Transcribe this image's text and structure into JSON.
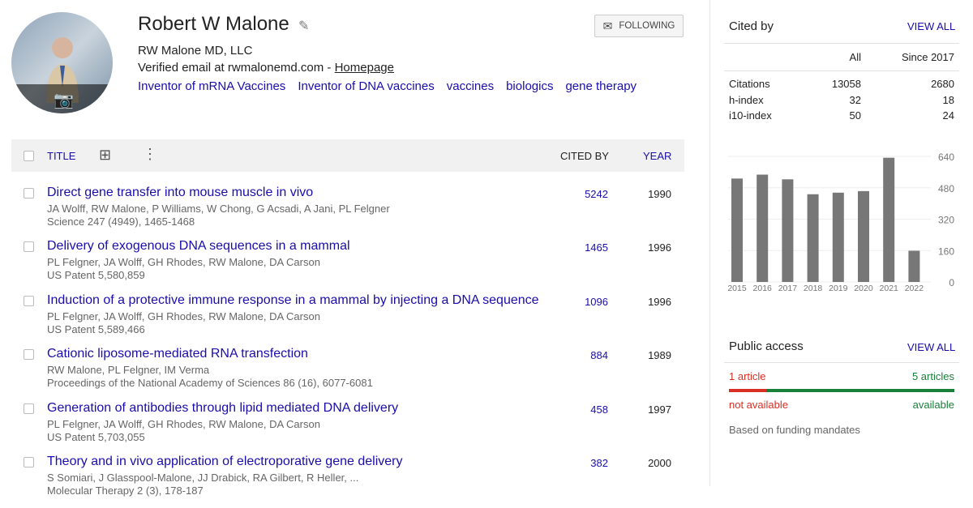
{
  "profile": {
    "name": "Robert W Malone",
    "affiliation": "RW Malone MD, LLC",
    "email_text": "Verified email at rwmalonemd.com - ",
    "homepage": "Homepage",
    "interests": [
      "Inventor of mRNA Vaccines",
      "Inventor of DNA vaccines",
      "vaccines",
      "biologics",
      "gene therapy"
    ],
    "follow_label": "FOLLOWING"
  },
  "table": {
    "title_header": "TITLE",
    "cited_header": "CITED BY",
    "year_header": "YEAR",
    "rows": [
      {
        "title": "Direct gene transfer into mouse muscle in vivo",
        "authors": "JA Wolff, RW Malone, P Williams, W Chong, G Acsadi, A Jani, PL Felgner",
        "venue": "Science 247 (4949), 1465-1468",
        "cited": "5242",
        "year": "1990"
      },
      {
        "title": "Delivery of exogenous DNA sequences in a mammal",
        "authors": "PL Felgner, JA Wolff, GH Rhodes, RW Malone, DA Carson",
        "venue": "US Patent 5,580,859",
        "cited": "1465",
        "year": "1996"
      },
      {
        "title": "Induction of a protective immune response in a mammal by injecting a DNA sequence",
        "authors": "PL Felgner, JA Wolff, GH Rhodes, RW Malone, DA Carson",
        "venue": "US Patent 5,589,466",
        "cited": "1096",
        "year": "1996"
      },
      {
        "title": "Cationic liposome-mediated RNA transfection",
        "authors": "RW Malone, PL Felgner, IM Verma",
        "venue": "Proceedings of the National Academy of Sciences 86 (16), 6077-6081",
        "cited": "884",
        "year": "1989"
      },
      {
        "title": "Generation of antibodies through lipid mediated DNA delivery",
        "authors": "PL Felgner, JA Wolff, GH Rhodes, RW Malone, DA Carson",
        "venue": "US Patent 5,703,055",
        "cited": "458",
        "year": "1997"
      },
      {
        "title": "Theory and in vivo application of electroporative gene delivery",
        "authors": "S Somiari, J Glasspool-Malone, JJ Drabick, RA Gilbert, R Heller, ...",
        "venue": "Molecular Therapy 2 (3), 178-187",
        "cited": "382",
        "year": "2000"
      }
    ]
  },
  "cited_by": {
    "title": "Cited by",
    "view_all": "VIEW ALL",
    "col_all": "All",
    "col_since": "Since 2017",
    "metrics": [
      {
        "label": "Citations",
        "all": "13058",
        "since": "2680"
      },
      {
        "label": "h-index",
        "all": "32",
        "since": "18"
      },
      {
        "label": "i10-index",
        "all": "50",
        "since": "24"
      }
    ]
  },
  "chart_data": {
    "type": "bar",
    "categories": [
      "2015",
      "2016",
      "2017",
      "2018",
      "2019",
      "2020",
      "2021",
      "2022"
    ],
    "values": [
      527,
      547,
      523,
      447,
      455,
      463,
      633,
      159
    ],
    "yticks": [
      "0",
      "160",
      "320",
      "480",
      "640"
    ],
    "ylim": [
      0,
      640
    ],
    "grid": true,
    "bar_color": "#777777"
  },
  "public_access": {
    "title": "Public access",
    "view_all": "VIEW ALL",
    "not_available_count": "1 article",
    "available_count": "5 articles",
    "not_available": "not available",
    "available": "available",
    "note": "Based on funding mandates",
    "not_available_fraction": 0.167,
    "colors": {
      "not_available": "#d93025",
      "available": "#188038"
    }
  }
}
